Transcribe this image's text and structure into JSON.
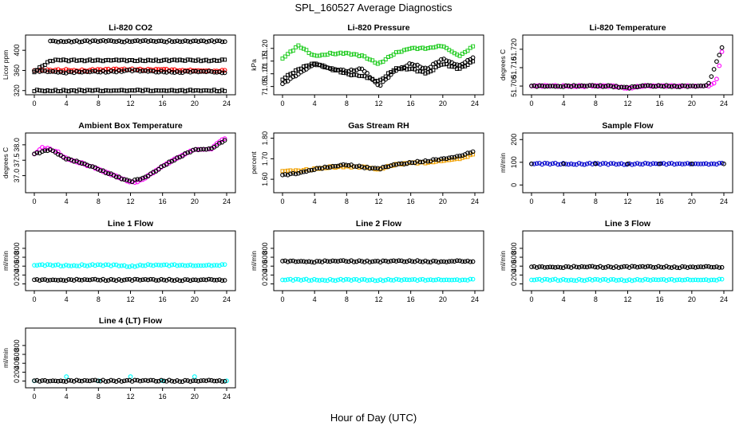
{
  "header": {
    "title": "SPL_160527  Average Diagnostics"
  },
  "footer": {
    "xlabel": "Hour of Day (UTC)"
  },
  "colors": {
    "black": "#000000",
    "red": "#ff0000",
    "green": "#22cc22",
    "magenta": "#ff00ff",
    "orange": "#f0a000",
    "blue": "#0000cc",
    "cyan": "#00ffff"
  },
  "chart_data": [
    {
      "title": "Li-820 CO2",
      "ylabel": "Licor ppm",
      "type": "scatter",
      "xlim": [
        0,
        24
      ],
      "ylim": [
        318,
        424
      ],
      "xticks": [
        "0",
        "4",
        "8",
        "12",
        "16",
        "20",
        "24"
      ],
      "yticks": [
        "320",
        "360",
        "400"
      ],
      "series": [
        {
          "color": "red",
          "marker": "circle",
          "x": [
            0,
            2,
            4,
            6,
            8,
            10,
            12,
            14,
            16,
            18,
            20,
            22,
            24
          ],
          "y": [
            360,
            360,
            361,
            360,
            361,
            362,
            363,
            361,
            362,
            360,
            360,
            359,
            359
          ]
        },
        {
          "color": "black",
          "marker": "circle",
          "x": [
            0,
            2,
            4,
            6,
            8,
            10,
            12,
            14,
            16,
            18,
            20,
            22,
            24
          ],
          "y": [
            359,
            358,
            356,
            357,
            357,
            358,
            360,
            358,
            357,
            357,
            358,
            357,
            356
          ]
        },
        {
          "color": "black",
          "marker": "square",
          "x": [
            0,
            2,
            4,
            6,
            8,
            10,
            12,
            14,
            16,
            18,
            20,
            22,
            24
          ],
          "y": [
            358,
            380,
            380,
            380,
            380,
            380,
            380,
            380,
            380,
            380,
            380,
            380,
            380
          ]
        },
        {
          "color": "black",
          "marker": "circle",
          "x": [
            2,
            4,
            6,
            8,
            10,
            12,
            14,
            16,
            18,
            20,
            22,
            24
          ],
          "y": [
            418,
            418,
            418,
            418,
            418,
            418,
            418,
            418,
            418,
            418,
            418,
            418
          ]
        },
        {
          "color": "black",
          "marker": "square",
          "x": [
            0,
            2,
            4,
            6,
            8,
            10,
            12,
            14,
            16,
            18,
            20,
            22,
            24
          ],
          "y": [
            320,
            320,
            320,
            320,
            320,
            320,
            320,
            320,
            320,
            320,
            320,
            320,
            320
          ]
        }
      ]
    },
    {
      "title": "Li-820 Pressure",
      "ylabel": "kPa",
      "type": "scatter",
      "xlim": [
        0,
        24
      ],
      "ylim": [
        71.03,
        71.24
      ],
      "xticks": [
        "0",
        "4",
        "8",
        "12",
        "16",
        "20",
        "24"
      ],
      "yticks": [
        "71.05",
        "71.10",
        "71.15",
        "71.20"
      ],
      "series": [
        {
          "color": "green",
          "marker": "square",
          "x": [
            0,
            2,
            4,
            6,
            8,
            10,
            12,
            14,
            16,
            18,
            20,
            22,
            24
          ],
          "y": [
            71.16,
            71.21,
            71.17,
            71.18,
            71.18,
            71.17,
            71.14,
            71.18,
            71.2,
            71.2,
            71.21,
            71.17,
            71.21
          ]
        },
        {
          "color": "black",
          "marker": "circle",
          "x": [
            0,
            2,
            4,
            6,
            8,
            10,
            12,
            14,
            16,
            18,
            20,
            22,
            24
          ],
          "y": [
            71.06,
            71.1,
            71.14,
            71.12,
            71.11,
            71.12,
            71.05,
            71.11,
            71.14,
            71.12,
            71.16,
            71.13,
            71.17
          ]
        },
        {
          "color": "black",
          "marker": "square",
          "x": [
            0,
            2,
            4,
            6,
            8,
            10,
            12,
            14,
            16,
            18,
            20,
            22,
            24
          ],
          "y": [
            71.08,
            71.12,
            71.14,
            71.12,
            71.1,
            71.09,
            71.07,
            71.12,
            71.12,
            71.1,
            71.14,
            71.12,
            71.15
          ]
        }
      ]
    },
    {
      "title": "Li-820 Temperature",
      "ylabel": "degrees C",
      "type": "scatter",
      "xlim": [
        0,
        24
      ],
      "ylim": [
        51.697,
        51.726
      ],
      "xticks": [
        "0",
        "4",
        "8",
        "12",
        "16",
        "20",
        "24"
      ],
      "yticks": [
        "51.700",
        "51.710",
        "51.720"
      ],
      "series": [
        {
          "color": "magenta",
          "marker": "circle",
          "x": [
            0,
            2,
            4,
            6,
            8,
            10,
            12,
            14,
            16,
            18,
            20,
            22,
            23,
            23.5,
            24
          ],
          "y": [
            51.7,
            51.7,
            51.7,
            51.7,
            51.7,
            51.7,
            51.699,
            51.7,
            51.7,
            51.7,
            51.7,
            51.7,
            51.702,
            51.712,
            51.724
          ]
        },
        {
          "color": "black",
          "marker": "circle",
          "x": [
            0,
            2,
            4,
            6,
            8,
            10,
            12,
            14,
            16,
            18,
            20,
            22,
            24
          ],
          "y": [
            51.7,
            51.7,
            51.7,
            51.7,
            51.7,
            51.7,
            51.699,
            51.7,
            51.7,
            51.7,
            51.7,
            51.7,
            51.724
          ]
        }
      ]
    },
    {
      "title": "Ambient Box Temperature",
      "ylabel": "degrees C",
      "type": "scatter",
      "xlim": [
        0,
        24
      ],
      "ylim": [
        36.55,
        38.28
      ],
      "xticks": [
        "0",
        "4",
        "8",
        "12",
        "16",
        "20",
        "24"
      ],
      "yticks": [
        "37.0",
        "37.5",
        "38.0"
      ],
      "series": [
        {
          "color": "magenta",
          "marker": "circle",
          "x": [
            0,
            1,
            2,
            3,
            4,
            6,
            8,
            10,
            12,
            13,
            14,
            16,
            18,
            20,
            22,
            23,
            24
          ],
          "y": [
            37.7,
            37.9,
            37.85,
            37.75,
            37.55,
            37.4,
            37.2,
            37.0,
            36.8,
            36.8,
            36.95,
            37.3,
            37.6,
            37.85,
            37.85,
            38.1,
            38.2
          ]
        },
        {
          "color": "black",
          "marker": "circle",
          "x": [
            0,
            2,
            4,
            6,
            8,
            10,
            12,
            14,
            16,
            18,
            20,
            22,
            24
          ],
          "y": [
            37.7,
            37.85,
            37.55,
            37.4,
            37.2,
            37.0,
            36.8,
            36.95,
            37.3,
            37.6,
            37.85,
            37.85,
            38.2
          ]
        }
      ]
    },
    {
      "title": "Gas Stream RH",
      "ylabel": "percent",
      "type": "scatter",
      "xlim": [
        0,
        24
      ],
      "ylim": [
        1.55,
        1.81
      ],
      "xticks": [
        "0",
        "4",
        "8",
        "12",
        "16",
        "20",
        "24"
      ],
      "yticks": [
        "1.60",
        "1.70",
        "1.80"
      ],
      "series": [
        {
          "color": "orange",
          "marker": "square",
          "x": [
            0,
            2,
            4,
            6,
            8,
            10,
            12,
            14,
            16,
            18,
            20,
            22,
            24
          ],
          "y": [
            1.64,
            1.64,
            1.65,
            1.66,
            1.66,
            1.66,
            1.65,
            1.67,
            1.68,
            1.68,
            1.69,
            1.7,
            1.72
          ]
        },
        {
          "color": "black",
          "marker": "circle",
          "x": [
            0,
            2,
            4,
            6,
            8,
            10,
            12,
            14,
            16,
            18,
            20,
            22,
            24
          ],
          "y": [
            1.62,
            1.63,
            1.65,
            1.66,
            1.67,
            1.66,
            1.65,
            1.67,
            1.68,
            1.69,
            1.7,
            1.71,
            1.74
          ]
        }
      ]
    },
    {
      "title": "Sample Flow",
      "ylabel": "ml/min",
      "type": "scatter",
      "xlim": [
        0,
        24
      ],
      "ylim": [
        -20,
        215
      ],
      "xticks": [
        "0",
        "4",
        "8",
        "12",
        "16",
        "20",
        "24"
      ],
      "yticks": [
        "0",
        "100",
        "200"
      ],
      "series": [
        {
          "color": "blue",
          "marker": "circle",
          "x": [
            0,
            2,
            4,
            6,
            8,
            10,
            12,
            14,
            16,
            18,
            20,
            22,
            24
          ],
          "y": [
            93,
            93,
            93,
            93,
            93,
            93,
            93,
            93,
            93,
            93,
            93,
            93,
            93
          ]
        },
        {
          "color": "black",
          "marker": "circle",
          "x": [
            0,
            4,
            8,
            12,
            16,
            20,
            24
          ],
          "y": [
            93,
            93,
            93,
            93,
            93,
            93,
            93
          ]
        }
      ]
    },
    {
      "title": "Line 1 Flow",
      "ylabel": "ml/min",
      "type": "scatter",
      "xlim": [
        0,
        24
      ],
      "ylim": [
        -80,
        1120
      ],
      "xticks": [
        "0",
        "4",
        "8",
        "12",
        "16",
        "20",
        "24"
      ],
      "yticks": [
        "0",
        "200",
        "400",
        "600",
        "800"
      ],
      "series": [
        {
          "color": "cyan",
          "marker": "circle",
          "x": [
            0,
            2,
            4,
            6,
            8,
            10,
            12,
            14,
            16,
            18,
            20,
            22,
            24
          ],
          "y": [
            420,
            420,
            410,
            420,
            420,
            420,
            400,
            420,
            420,
            420,
            410,
            420,
            420
          ]
        },
        {
          "color": "black",
          "marker": "circle",
          "x": [
            0,
            2,
            4,
            6,
            8,
            10,
            12,
            14,
            16,
            18,
            20,
            22,
            24
          ],
          "y": [
            90,
            90,
            90,
            90,
            90,
            90,
            90,
            90,
            90,
            90,
            90,
            90,
            90
          ]
        }
      ]
    },
    {
      "title": "Line 2 Flow",
      "ylabel": "ml/min",
      "type": "scatter",
      "xlim": [
        0,
        24
      ],
      "ylim": [
        -80,
        1120
      ],
      "xticks": [
        "0",
        "4",
        "8",
        "12",
        "16",
        "20",
        "24"
      ],
      "yticks": [
        "0",
        "200",
        "400",
        "600",
        "800"
      ],
      "series": [
        {
          "color": "cyan",
          "marker": "circle",
          "x": [
            0,
            2,
            4,
            6,
            8,
            10,
            12,
            14,
            16,
            18,
            20,
            22,
            24
          ],
          "y": [
            90,
            90,
            90,
            90,
            90,
            90,
            90,
            90,
            90,
            90,
            90,
            90,
            90
          ]
        },
        {
          "color": "black",
          "marker": "circle",
          "x": [
            0,
            2,
            4,
            6,
            8,
            10,
            12,
            14,
            16,
            18,
            20,
            22,
            24
          ],
          "y": [
            510,
            510,
            500,
            510,
            510,
            510,
            500,
            510,
            510,
            510,
            500,
            510,
            510
          ]
        }
      ]
    },
    {
      "title": "Line 3 Flow",
      "ylabel": "ml/min",
      "type": "scatter",
      "xlim": [
        0,
        24
      ],
      "ylim": [
        -80,
        1120
      ],
      "xticks": [
        "0",
        "4",
        "8",
        "12",
        "16",
        "20",
        "24"
      ],
      "yticks": [
        "0",
        "200",
        "400",
        "600",
        "800"
      ],
      "series": [
        {
          "color": "cyan",
          "marker": "circle",
          "x": [
            0,
            2,
            4,
            6,
            8,
            10,
            12,
            14,
            16,
            18,
            20,
            22,
            24
          ],
          "y": [
            90,
            90,
            90,
            90,
            90,
            90,
            90,
            90,
            90,
            90,
            90,
            90,
            90
          ]
        },
        {
          "color": "black",
          "marker": "circle",
          "x": [
            0,
            2,
            4,
            6,
            8,
            10,
            12,
            14,
            16,
            18,
            20,
            22,
            24
          ],
          "y": [
            380,
            380,
            380,
            380,
            380,
            380,
            380,
            380,
            380,
            380,
            380,
            380,
            380
          ]
        }
      ]
    },
    {
      "title": "Line 4 (LT) Flow",
      "ylabel": "ml/min",
      "type": "scatter",
      "xlim": [
        0,
        24
      ],
      "ylim": [
        -80,
        1120
      ],
      "xticks": [
        "0",
        "4",
        "8",
        "12",
        "16",
        "20",
        "24"
      ],
      "yticks": [
        "0",
        "200",
        "400",
        "600",
        "800"
      ],
      "series": [
        {
          "color": "cyan",
          "marker": "circle",
          "x": [
            0,
            4,
            8,
            12,
            16,
            20,
            24
          ],
          "y": [
            5,
            100,
            5,
            100,
            5,
            100,
            5
          ]
        },
        {
          "color": "black",
          "marker": "circle",
          "x": [
            0,
            2,
            4,
            6,
            8,
            10,
            12,
            14,
            16,
            18,
            20,
            22,
            24
          ],
          "y": [
            5,
            5,
            5,
            5,
            5,
            5,
            5,
            5,
            5,
            5,
            5,
            5,
            5
          ]
        }
      ]
    }
  ]
}
